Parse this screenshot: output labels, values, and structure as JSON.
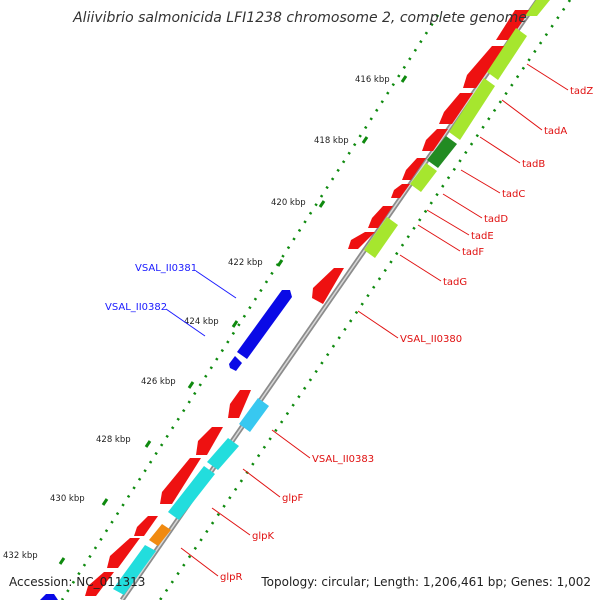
{
  "title": "Aliivibrio salmonicida LFI1238 chromosome 2, complete genome",
  "accession": "Accession: NC_011313",
  "topology": "Topology: circular; Length: 1,206,461 bp; Genes: 1,002",
  "ticks": [
    "416 kbp",
    "418 kbp",
    "420 kbp",
    "422 kbp",
    "424 kbp",
    "426 kbp",
    "428 kbp",
    "430 kbp",
    "432 kbp"
  ],
  "gene_labels": {
    "tadZ": "tadZ",
    "tadA": "tadA",
    "tadB": "tadB",
    "tadC": "tadC",
    "tadD": "tadD",
    "tadE": "tadE",
    "tadF": "tadF",
    "tadG": "tadG",
    "VSAL_II0380": "VSAL_II0380",
    "VSAL_II0381": "VSAL_II0381",
    "VSAL_II0382": "VSAL_II0382",
    "VSAL_II0383": "VSAL_II0383",
    "glpF": "glpF",
    "glpK": "glpK",
    "glpR": "glpR"
  },
  "colors": {
    "cds_red": "#ee1111",
    "cds_blue": "#0a0ae6",
    "lightgreen": "#a6e62e",
    "darkgreen": "#228b22",
    "cyan": "#22dddd",
    "skyblue": "#38c8f0",
    "orange": "#f08a10",
    "backbone": "#8c8c8c",
    "dots": "#0f8a0f"
  }
}
